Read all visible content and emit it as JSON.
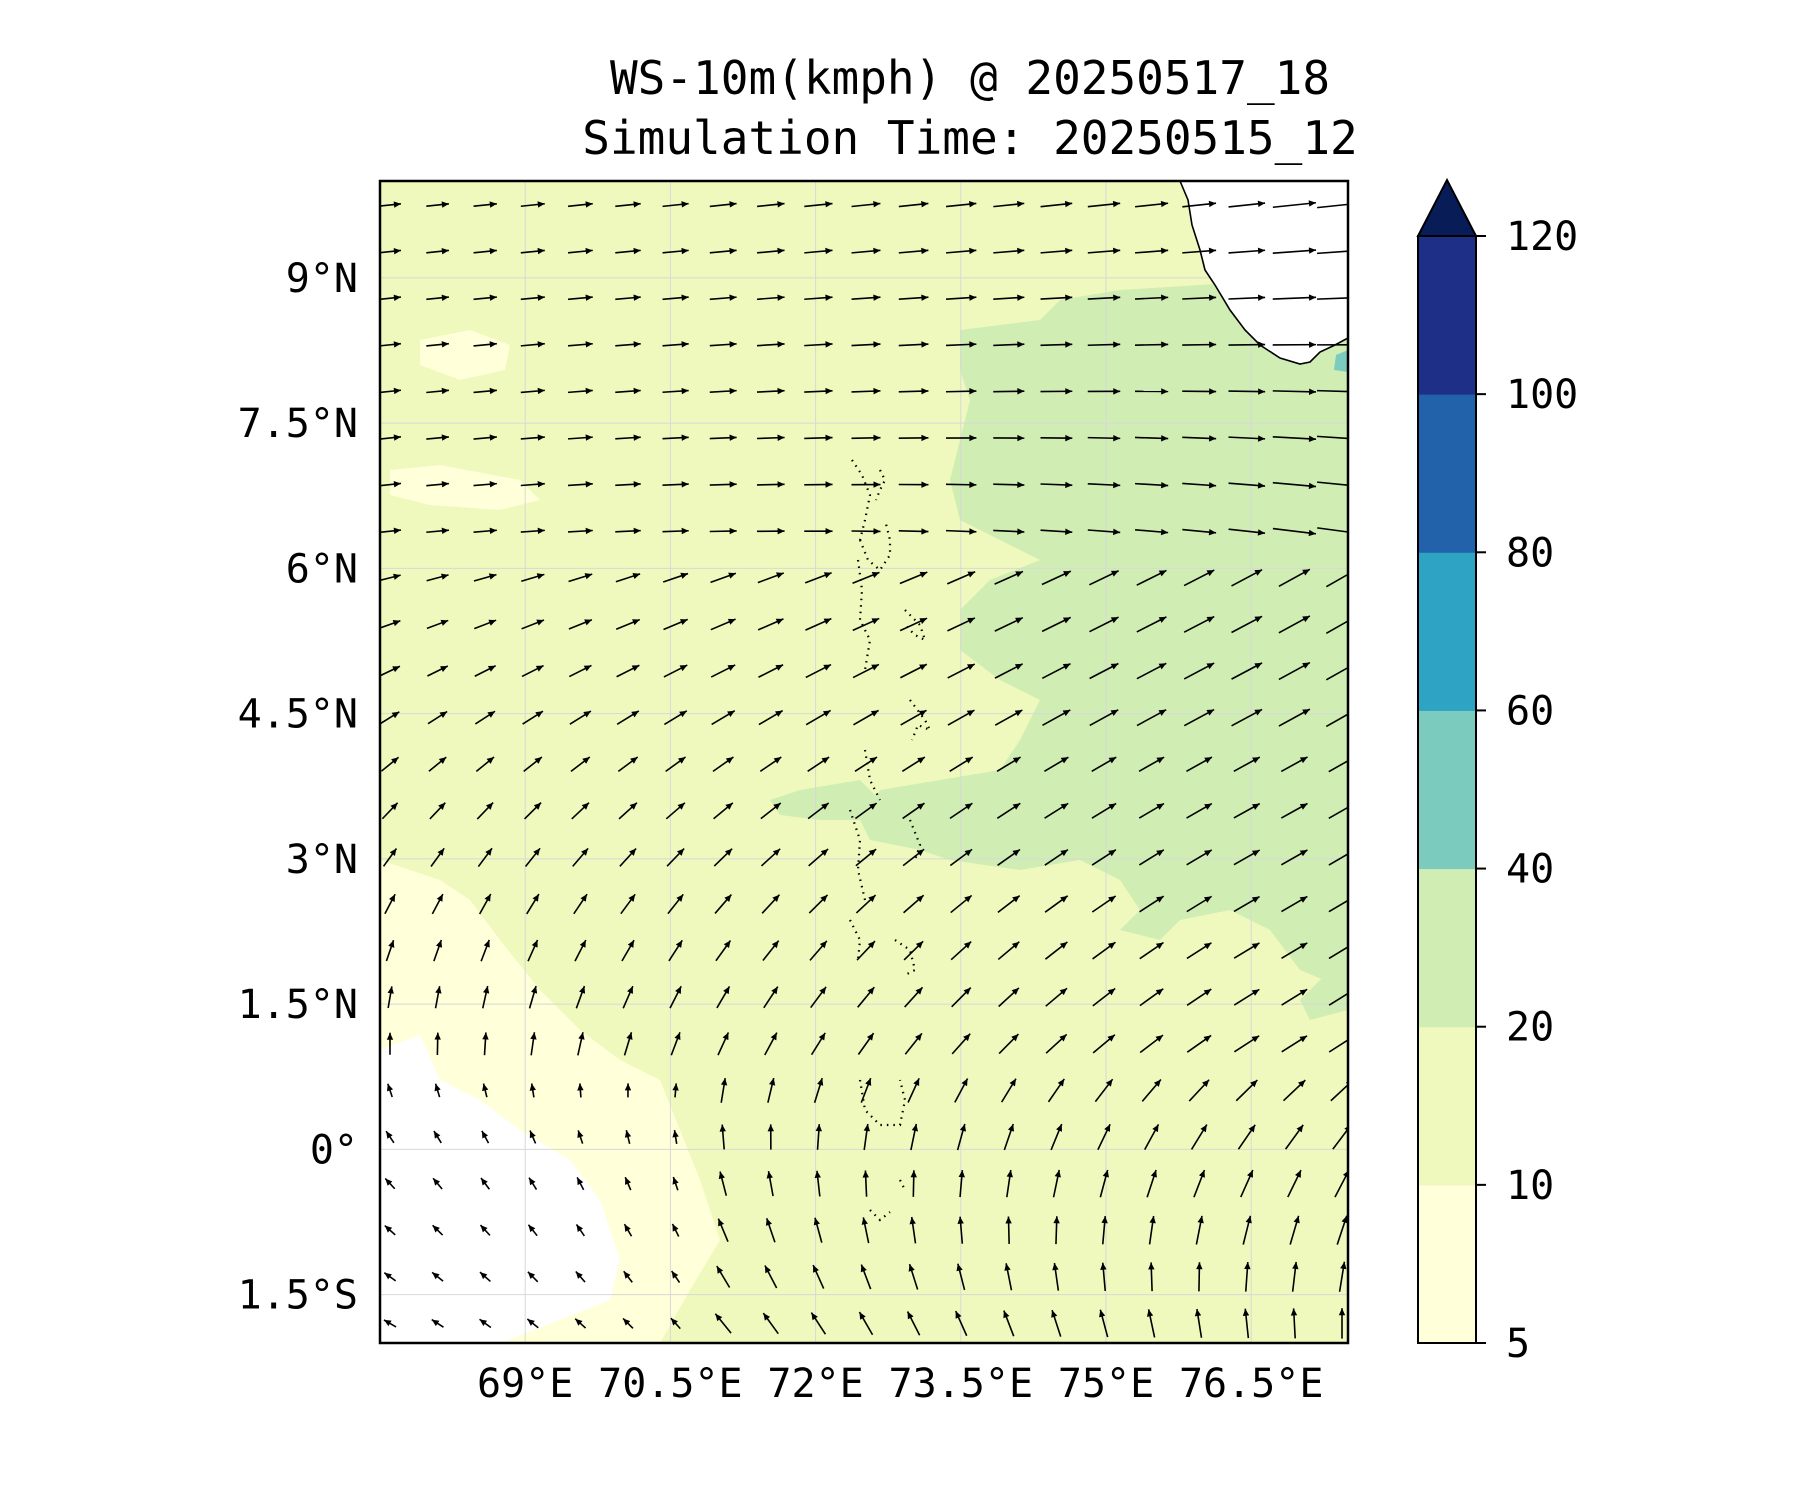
{
  "title": "WS-10m(kmph) @ 20250517_18",
  "subtitle": "Simulation Time: 20250515_12",
  "map": {
    "lon_range": [
      67.5,
      77.5
    ],
    "lat_range": [
      -2.0,
      10.0
    ],
    "lon_ticks": [
      {
        "value": 69.0,
        "label": "69°E"
      },
      {
        "value": 70.5,
        "label": "70.5°E"
      },
      {
        "value": 72.0,
        "label": "72°E"
      },
      {
        "value": 73.5,
        "label": "73.5°E"
      },
      {
        "value": 75.0,
        "label": "75°E"
      },
      {
        "value": 76.5,
        "label": "76.5°E"
      }
    ],
    "lat_ticks": [
      {
        "value": 9.0,
        "label": "9°N"
      },
      {
        "value": 7.5,
        "label": "7.5°N"
      },
      {
        "value": 6.0,
        "label": "6°N"
      },
      {
        "value": 4.5,
        "label": "4.5°N"
      },
      {
        "value": 3.0,
        "label": "3°N"
      },
      {
        "value": 1.5,
        "label": "1.5°N"
      },
      {
        "value": 0.0,
        "label": "0°"
      },
      {
        "value": -1.5,
        "label": "1.5°S"
      }
    ],
    "gridlines": true
  },
  "colorbar": {
    "levels": [
      5,
      10,
      20,
      40,
      60,
      80,
      100,
      120
    ],
    "tick_labels": [
      "5",
      "10",
      "20",
      "40",
      "60",
      "80",
      "100",
      "120"
    ],
    "colors": [
      "#ffffd9",
      "#eff9bd",
      "#d0edb3",
      "#7bcbbe",
      "#2ea3c4",
      "#2162ab",
      "#1e2f87"
    ],
    "extend_color": "#081d58",
    "extend": "max"
  },
  "wind_field": {
    "units": "kmph",
    "regimes": [
      "north: westerly",
      "east: west-southwesterly",
      "southwest: southeasterly",
      "south-center: southerly"
    ]
  },
  "colors": {
    "land": "#ffffff",
    "coast": "#000000",
    "arrow": "#000000",
    "grid": "#d8d8d8"
  }
}
